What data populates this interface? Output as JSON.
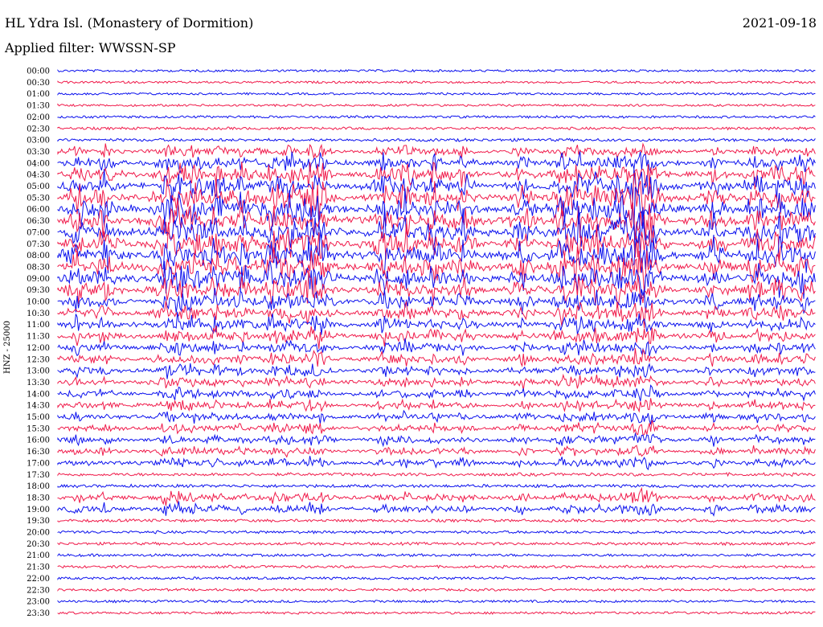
{
  "header": {
    "station": "HL Ydra Isl. (Monastery of Dormition)",
    "date": "2021-09-18",
    "filter": "Applied filter: WWSSN-SP"
  },
  "colors": {
    "blue": "#0a10ee",
    "red": "#f01a4a"
  },
  "chart_data": {
    "type": "line",
    "title": "HL Ydra Isl. (Monastery of Dormition)",
    "subtitle": "Applied filter: WWSSN-SP",
    "date": "2021-09-18",
    "ylabel": "HNZ - 25000",
    "xlabel": "",
    "grid": false,
    "legend": "none",
    "series_colors": [
      "#0a10ee",
      "#f01a4a"
    ],
    "rows": [
      "00:00",
      "00:30",
      "01:00",
      "01:30",
      "02:00",
      "02:30",
      "03:00",
      "03:30",
      "04:00",
      "04:30",
      "05:00",
      "05:30",
      "06:00",
      "06:30",
      "07:00",
      "07:30",
      "08:00",
      "08:30",
      "09:00",
      "09:30",
      "10:00",
      "10:30",
      "11:00",
      "11:30",
      "12:00",
      "12:30",
      "13:00",
      "13:30",
      "14:00",
      "14:30",
      "15:00",
      "15:30",
      "16:00",
      "16:30",
      "17:00",
      "17:30",
      "18:00",
      "18:30",
      "19:00",
      "19:30",
      "20:00",
      "20:30",
      "21:00",
      "21:30",
      "22:00",
      "22:30",
      "23:00",
      "23:30"
    ],
    "activity": [
      0.06,
      0.04,
      0.05,
      0.05,
      0.1,
      0.14,
      0.2,
      0.35,
      0.5,
      0.65,
      0.85,
      0.95,
      1.0,
      1.0,
      1.0,
      1.0,
      1.0,
      1.0,
      0.95,
      0.8,
      0.6,
      0.55,
      0.5,
      0.45,
      0.4,
      0.38,
      0.35,
      0.32,
      0.3,
      0.3,
      0.28,
      0.28,
      0.28,
      0.26,
      0.26,
      0.24,
      0.22,
      0.3,
      0.3,
      0.18,
      0.16,
      0.16,
      0.15,
      0.14,
      0.12,
      0.1,
      0.1,
      0.09
    ]
  }
}
